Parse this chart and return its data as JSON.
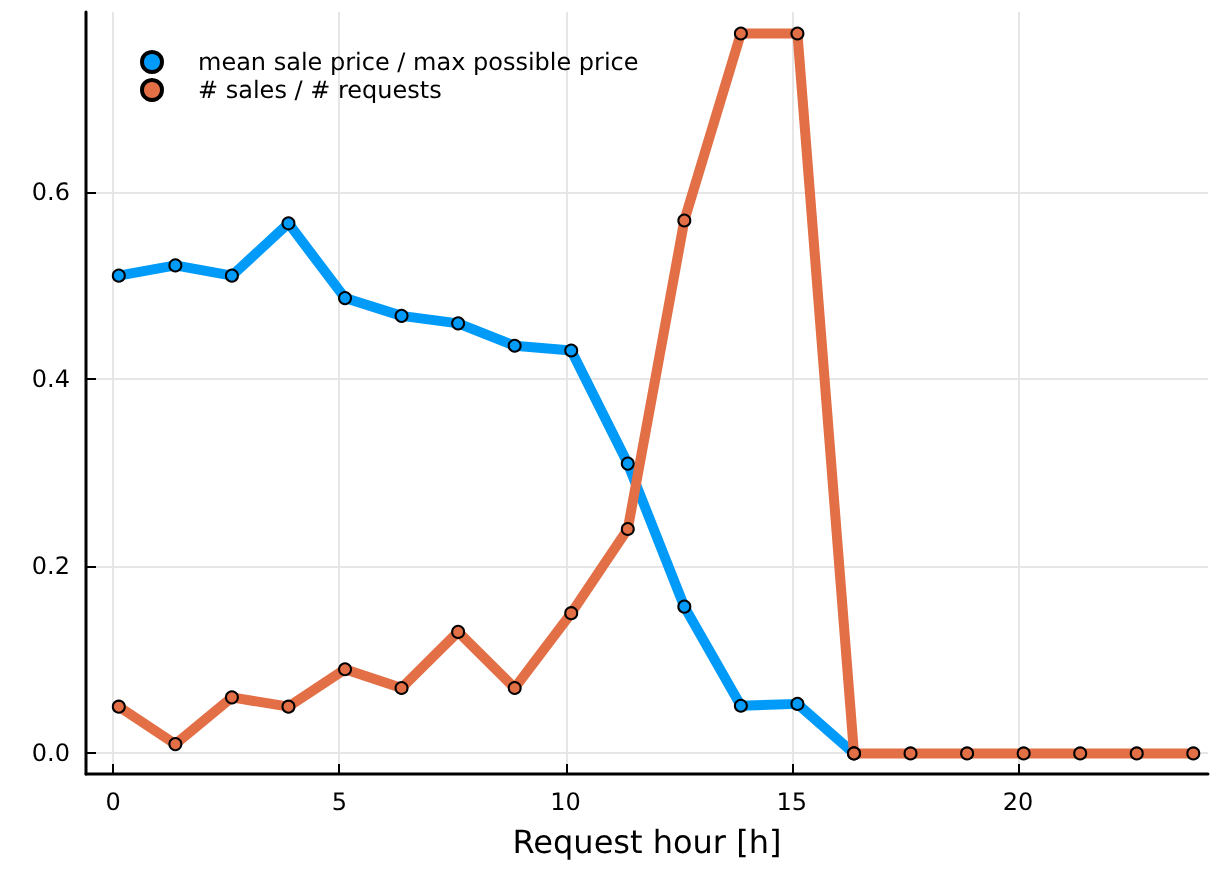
{
  "chart_data": {
    "type": "line",
    "xlabel": "Request hour [h]",
    "x": [
      0.125,
      1.375,
      2.625,
      3.875,
      5.125,
      6.375,
      7.625,
      8.875,
      10.125,
      11.375,
      12.625,
      13.875,
      15.125,
      16.375,
      17.625,
      18.875,
      20.125,
      21.375,
      22.625,
      23.875
    ],
    "series": [
      {
        "name": "mean sale price / max possible price",
        "color": "#009af9",
        "values": [
          0.511,
          0.522,
          0.511,
          0.567,
          0.487,
          0.468,
          0.46,
          0.436,
          0.431,
          0.31,
          0.157,
          0.051,
          0.053,
          0,
          null,
          null,
          null,
          null,
          null,
          null
        ]
      },
      {
        "name": "# sales / # requests",
        "color": "#e26f46",
        "values": [
          0.05,
          0.01,
          0.06,
          0.05,
          0.09,
          0.07,
          0.13,
          0.07,
          0.15,
          0.24,
          0.57,
          0.77,
          0.77,
          0,
          0,
          0,
          0,
          0,
          0,
          0
        ]
      }
    ],
    "xlim": [
      -0.6,
      24.2
    ],
    "xticks": [
      0,
      5,
      10,
      15,
      20
    ],
    "ylim": [
      -0.022,
      0.793
    ],
    "yticks": [
      {
        "value": 0,
        "label": "0.0"
      },
      0.2,
      0.4,
      0.6
    ],
    "grid": true,
    "legend": "top left",
    "marker": "circle",
    "line_style": "solid"
  }
}
